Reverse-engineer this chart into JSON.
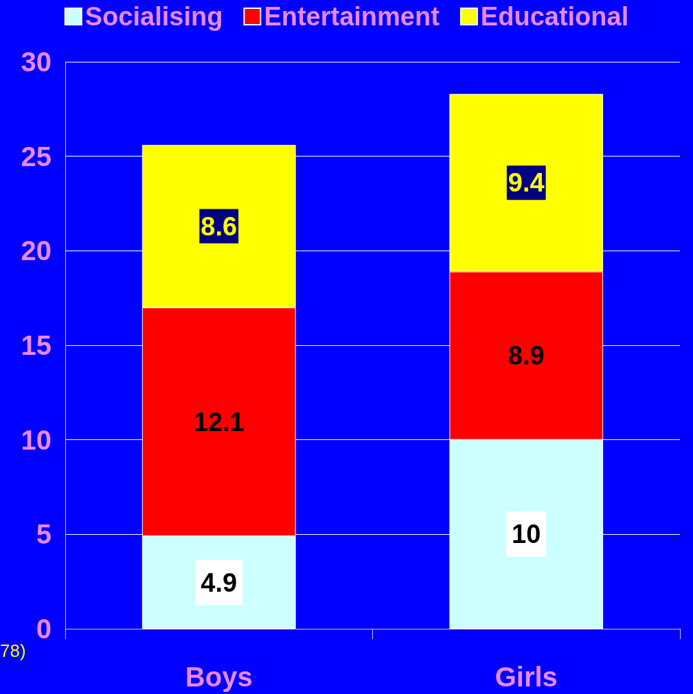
{
  "chart_data": {
    "type": "bar",
    "stacked": true,
    "categories": [
      "Boys",
      "Girls"
    ],
    "series": [
      {
        "name": "Socialising",
        "color": "#ccffff",
        "values": [
          4.9,
          10
        ]
      },
      {
        "name": "Entertainment",
        "color": "#ff0000",
        "values": [
          12.1,
          8.9
        ]
      },
      {
        "name": "Educational",
        "color": "#ffff00",
        "values": [
          8.6,
          9.4
        ]
      }
    ],
    "ylim": [
      0,
      30
    ],
    "yticks": [
      0,
      5,
      10,
      15,
      20,
      25,
      30
    ],
    "grid": "y",
    "legend": "top",
    "data_labels": true,
    "annotations": [
      "78)"
    ]
  }
}
